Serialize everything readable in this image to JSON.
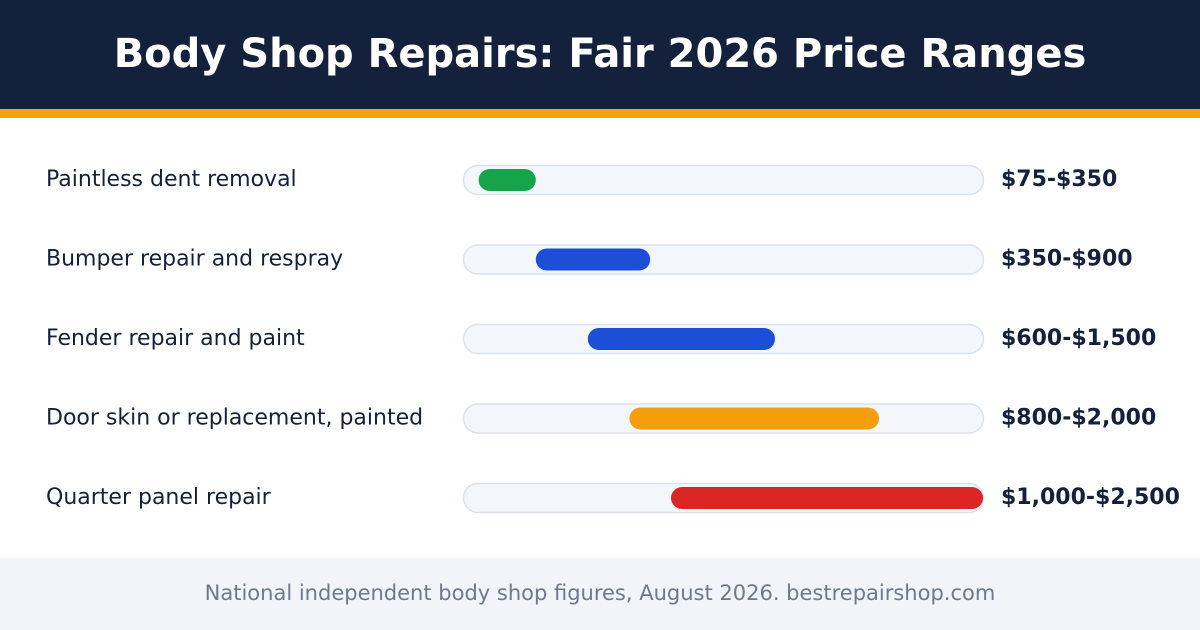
{
  "chart_data": {
    "type": "range-bar",
    "title": "Body Shop Repairs: Fair 2026 Price Ranges",
    "categories": [
      "Paintless dent removal",
      "Bumper repair and respray",
      "Fender repair and paint",
      "Door skin or replacement, painted",
      "Quarter panel repair"
    ],
    "start": [
      75,
      350,
      600,
      800,
      1000
    ],
    "end": [
      350,
      900,
      1500,
      2000,
      2500
    ],
    "value_labels": [
      "$75-$350",
      "$350-$900",
      "$600-$1,500",
      "$800-$2,000",
      "$1,000-$2,500"
    ],
    "colors": [
      "#16a34a",
      "#1d4ed8",
      "#1d4ed8",
      "#f59e0b",
      "#dc2626"
    ],
    "xlim": [
      0,
      2500
    ],
    "footer": "National independent body shop figures, August 2026. bestrepairshop.com"
  }
}
